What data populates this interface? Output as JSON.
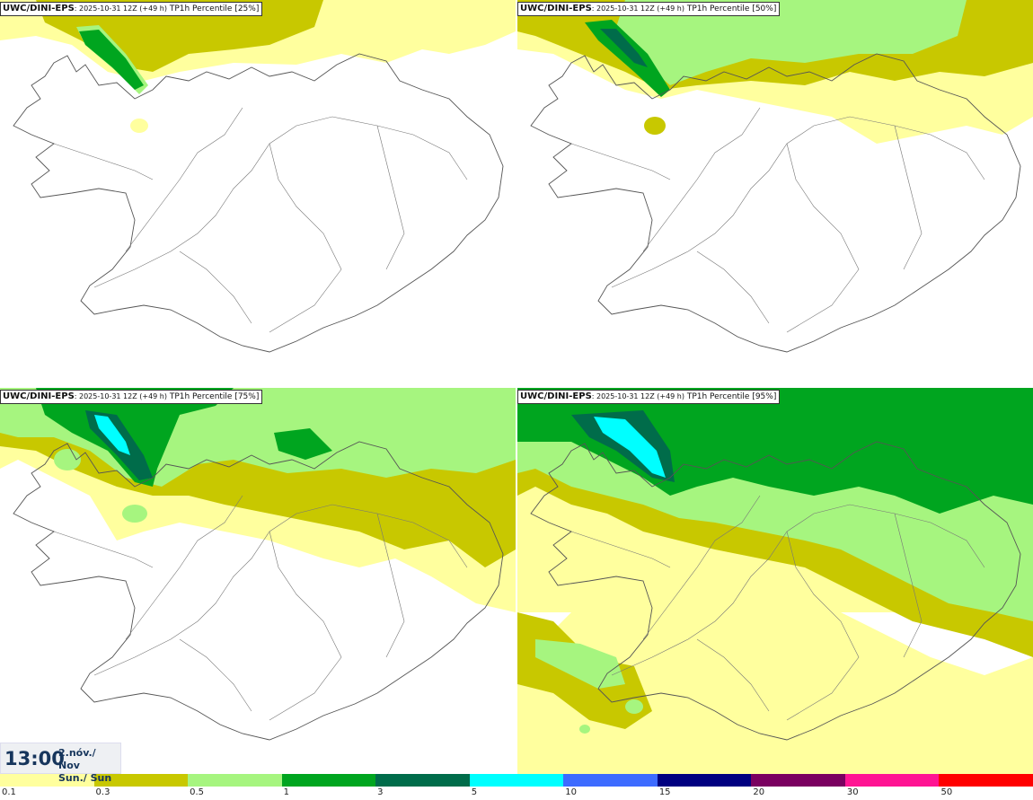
{
  "panels": [
    {
      "model": "UWC/DINI-EPS",
      "run": ": 2025-10-31 12Z (+49 h)",
      "field": " TP1h Percentile [25%]",
      "coverage": "low"
    },
    {
      "model": "UWC/DINI-EPS",
      "run": ": 2025-10-31 12Z (+49 h)",
      "field": " TP1h Percentile [50%]",
      "coverage": "medium"
    },
    {
      "model": "UWC/DINI-EPS",
      "run": ": 2025-10-31 12Z (+49 h)",
      "field": " TP1h Percentile [75%]",
      "coverage": "high"
    },
    {
      "model": "UWC/DINI-EPS",
      "run": ": 2025-10-31 12Z (+49 h)",
      "field": " TP1h Percentile [95%]",
      "coverage": "very-high"
    }
  ],
  "valid_time": {
    "clock": "13:00",
    "date_line1": "2.nóv./ Nov",
    "date_line2": "Sun./ Sun"
  },
  "legend": {
    "colors": [
      "#ffff9e",
      "#c8c800",
      "#a6f57f",
      "#00a51f",
      "#006c4a",
      "#00ffff",
      "#3d6bff",
      "#000080",
      "#7a0060",
      "#ff1493",
      "#ff0000"
    ],
    "labels": [
      "0.1",
      "0.3",
      "0.5",
      "1",
      "3",
      "5",
      "10",
      "15",
      "20",
      "30",
      "50"
    ]
  }
}
